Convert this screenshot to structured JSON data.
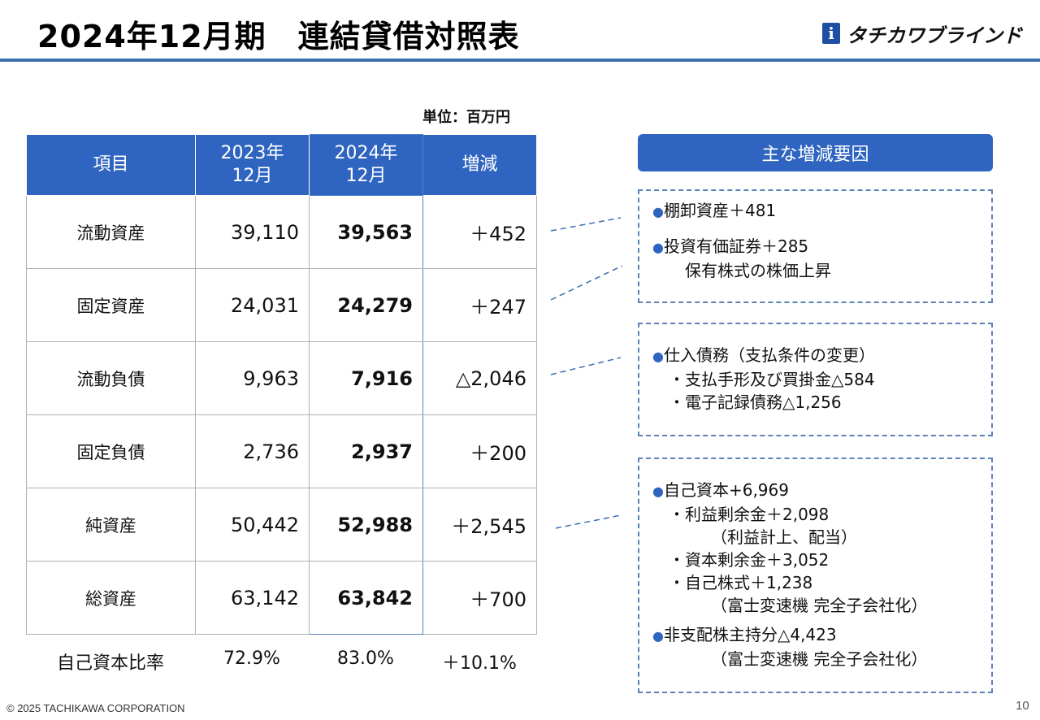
{
  "header": {
    "title": "2024年12月期　連結貸借対照表",
    "logo_mark": "i",
    "logo_text": "タチカワブラインド"
  },
  "unit": "単位：百万円",
  "table": {
    "columns": [
      "項目",
      "2023年\n12月",
      "2024年\n12月",
      "増減"
    ],
    "rows": [
      {
        "item": "流動資産",
        "y2023": "39,110",
        "y2024": "39,563",
        "diff": "＋452"
      },
      {
        "item": "固定資産",
        "y2023": "24,031",
        "y2024": "24,279",
        "diff": "＋247"
      },
      {
        "item": "流動負債",
        "y2023": "9,963",
        "y2024": "7,916",
        "diff": "△2,046"
      },
      {
        "item": "固定負債",
        "y2023": "2,736",
        "y2024": "2,937",
        "diff": "＋200"
      },
      {
        "item": "純資産",
        "y2023": "50,442",
        "y2024": "52,988",
        "diff": "＋2,545"
      },
      {
        "item": "総資産",
        "y2023": "63,142",
        "y2024": "63,842",
        "diff": "＋700"
      }
    ],
    "ratio": {
      "item": "自己資本比率",
      "y2023": "72.9%",
      "y2024": "83.0%",
      "diff": "＋10.1%"
    }
  },
  "factors": {
    "title": "主な増減要因",
    "box1": {
      "l1": "棚卸資産＋481",
      "l2": "投資有価証券＋285",
      "l3": "保有株式の株価上昇"
    },
    "box2": {
      "l1": "仕入債務（支払条件の変更）",
      "l2": "・支払手形及び買掛金△584",
      "l3": "・電子記録債務△1,256"
    },
    "box3": {
      "l1": "自己資本+6,969",
      "l2": "・利益剰余金＋2,098",
      "l3": "（利益計上、配当）",
      "l4": "・資本剰余金＋3,052",
      "l5": "・自己株式＋1,238",
      "l6": "（富士変速機 完全子会社化）",
      "l7": "非支配株主持分△4,423",
      "l8": "（富士変速機 完全子会社化）"
    }
  },
  "footer": {
    "copyright": "© 2025 TACHIKAWA CORPORATION",
    "page": "10"
  },
  "colors": {
    "accent": "#2f65c0",
    "rule": "#3a6fb0",
    "dash": "#5b82b8"
  }
}
